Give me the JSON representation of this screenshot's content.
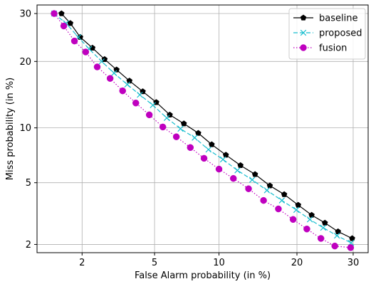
{
  "chart_data": {
    "type": "line",
    "title": "",
    "xlabel": "False Alarm probability (in %)",
    "ylabel": "Miss probability (in %)",
    "x_scale": "probit",
    "y_scale": "probit",
    "xlim": [
      1.05,
      33
    ],
    "ylim": [
      1.75,
      32
    ],
    "x_ticks": [
      2,
      5,
      10,
      20,
      30
    ],
    "x_tick_labels": [
      "2",
      "5",
      "10",
      "20",
      "30"
    ],
    "y_ticks": [
      2,
      5,
      10,
      20,
      30
    ],
    "y_tick_labels": [
      "2",
      "5",
      "10",
      "20",
      "30"
    ],
    "grid": true,
    "legend_position": "top-right",
    "series": [
      {
        "name": "baseline",
        "color": "#000000",
        "line_style": "solid",
        "marker": "pentagon",
        "x": [
          1.5,
          1.7,
          1.95,
          2.3,
          2.7,
          3.15,
          3.7,
          4.35,
          5.1,
          5.95,
          6.95,
          8.1,
          9.3,
          10.7,
          12.3,
          14.05,
          16.0,
          18.05,
          20.2,
          22.4,
          24.7,
          27.1,
          29.8
        ],
        "y": [
          30,
          27.8,
          24.8,
          22.6,
          20.4,
          18.5,
          16.6,
          14.9,
          13.3,
          11.6,
          10.5,
          9.4,
          8.2,
          7.2,
          6.3,
          5.6,
          4.8,
          4.25,
          3.65,
          3.15,
          2.8,
          2.45,
          2.2
        ]
      },
      {
        "name": "proposed",
        "color": "#17becf",
        "line_style": "dashed",
        "marker": "x",
        "x": [
          1.35,
          1.6,
          1.9,
          2.2,
          2.6,
          3.05,
          3.6,
          4.2,
          4.9,
          5.75,
          6.7,
          7.8,
          9.0,
          10.4,
          11.95,
          13.7,
          15.6,
          17.7,
          19.9,
          22.1,
          24.4,
          26.9,
          29.6
        ],
        "y": [
          30,
          27.8,
          24.8,
          22.4,
          20.0,
          17.9,
          16.0,
          14.4,
          12.9,
          11.2,
          9.9,
          8.9,
          7.7,
          6.8,
          5.9,
          5.2,
          4.5,
          3.9,
          3.4,
          2.95,
          2.6,
          2.3,
          2.05
        ]
      },
      {
        "name": "fusion",
        "color": "#bf00bf",
        "line_style": "dotted",
        "marker": "o",
        "x": [
          1.35,
          1.55,
          1.8,
          2.1,
          2.45,
          2.9,
          3.4,
          4.0,
          4.7,
          5.5,
          6.4,
          7.45,
          8.6,
          10.0,
          11.5,
          13.25,
          15.15,
          17.2,
          19.4,
          21.6,
          24.0,
          26.5,
          29.5
        ],
        "y": [
          30,
          27.2,
          24.0,
          21.8,
          19.0,
          17.0,
          15.0,
          13.2,
          11.6,
          10.1,
          9.0,
          7.9,
          6.9,
          6.0,
          5.3,
          4.6,
          3.9,
          3.45,
          2.95,
          2.55,
          2.2,
          1.95,
          1.9
        ]
      }
    ]
  }
}
